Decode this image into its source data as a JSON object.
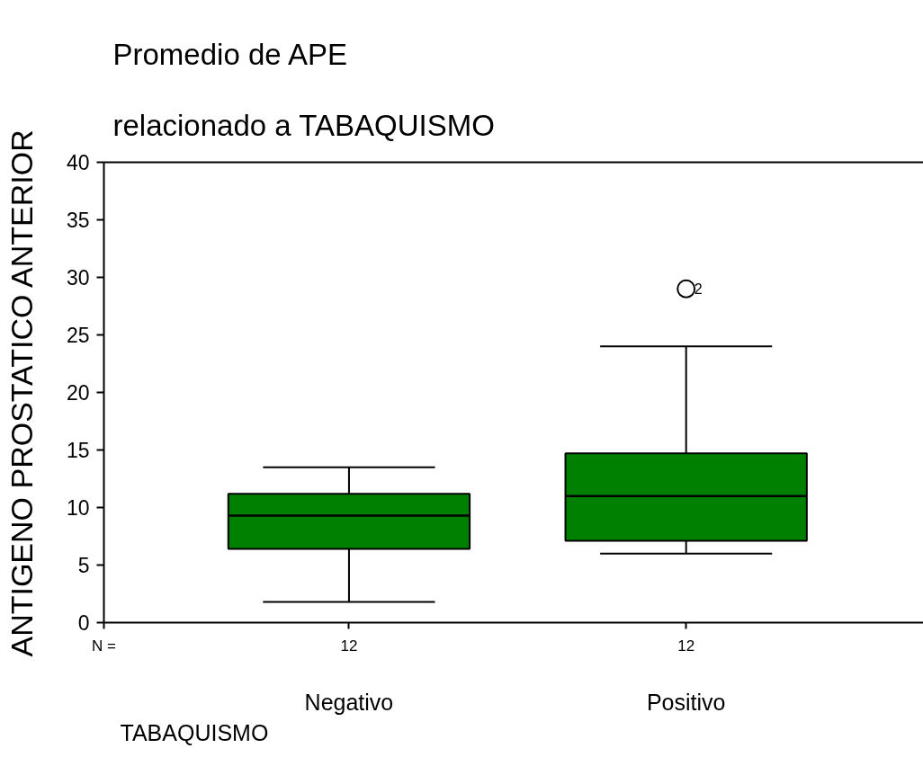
{
  "chart_data": {
    "type": "box",
    "title": "Promedio de APE",
    "subtitle": "relacionado a TABAQUISMO",
    "xlabel": "TABAQUISMO",
    "ylabel": "ANTIGENO PROSTATICO ANTERIOR",
    "categories": [
      "Negativo",
      "Positivo"
    ],
    "series": [
      {
        "color": "#008000",
        "boxes": [
          {
            "low": 1.8,
            "q1": 6.4,
            "median": 9.3,
            "q3": 11.2,
            "high": 13.5
          },
          {
            "low": 6.0,
            "q1": 7.1,
            "median": 11.0,
            "q3": 14.7,
            "high": 24.0,
            "outliers": [
              29
            ]
          }
        ]
      }
    ],
    "ylim": [
      0,
      40
    ],
    "yticks": [
      0,
      5,
      10,
      15,
      20,
      25,
      30,
      35,
      40
    ],
    "marker": "circle",
    "annotations": [
      "N =",
      {
        "text": "12",
        "x": "Negativo"
      },
      {
        "text": "12",
        "x": "Positivo"
      },
      "2"
    ]
  }
}
